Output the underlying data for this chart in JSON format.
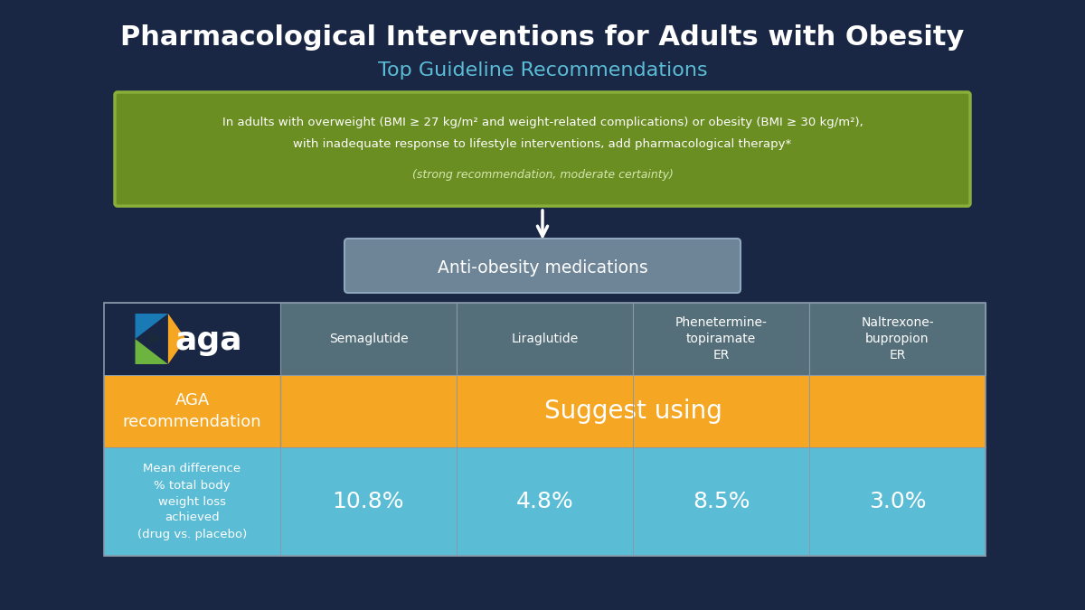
{
  "title": "Pharmacological Interventions for Adults with Obesity",
  "subtitle": "Top Guideline Recommendations",
  "background_color": "#1a2744",
  "green_box_text_line1": "In adults with overweight (BMI ≥ 27 kg/m² and weight-related complications) or obesity (BMI ≥ 30 kg/m²),",
  "green_box_text_line2": "with inadequate response to lifestyle interventions, add pharmacological therapy*",
  "green_box_text_line3": "(strong recommendation, moderate certainty)",
  "green_box_color": "#6b8e23",
  "green_box_border_color": "#8aae3a",
  "arrow_box_text": "Anti-obesity medications",
  "arrow_box_color": "#6e8497",
  "arrow_box_border_color": "#8fa8be",
  "medications": [
    "Semaglutide",
    "Liraglutide",
    "Phenetermine-\ntopiramate\nER",
    "Naltrexone-\nbupropion\nER"
  ],
  "recommendation_label": "AGA\nrecommendation",
  "recommendation": "Suggest using",
  "recommendation_color": "#f5a623",
  "weight_loss_label": "Mean difference\n% total body\nweight loss\nachieved\n(drug vs. placebo)",
  "weight_loss_values": [
    "10.8%",
    "4.8%",
    "8.5%",
    "3.0%"
  ],
  "weight_loss_color": "#5bbcd6",
  "header_bg_color": "#546e7a",
  "aga_logo_blue": "#1a7ab5",
  "aga_logo_orange": "#f5a623",
  "aga_logo_green": "#6db33f"
}
